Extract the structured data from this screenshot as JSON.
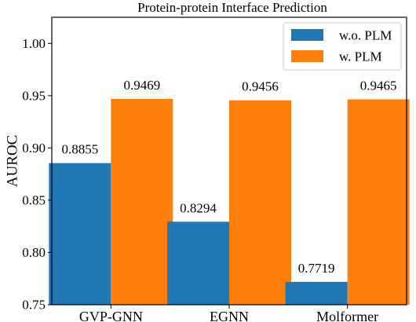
{
  "chart_data": {
    "type": "bar",
    "title": "Protein-protein Interface Prediction",
    "xlabel": "",
    "ylabel": "AUROC",
    "ylim": [
      0.75,
      1.025
    ],
    "yticks": [
      "0.75",
      "0.80",
      "0.85",
      "0.90",
      "0.95",
      "1.00"
    ],
    "grid": false,
    "legend_position": "top-right",
    "categories": [
      "GVP-GNN",
      "EGNN",
      "Molformer"
    ],
    "series": [
      {
        "name": "w.o. PLM",
        "color": "#1f77b4",
        "values": [
          0.8855,
          0.8294,
          0.7719
        ],
        "labels": [
          "0.8855",
          "0.8294",
          "0.7719"
        ]
      },
      {
        "name": "w. PLM",
        "color": "#ff7f0e",
        "values": [
          0.9469,
          0.9456,
          0.9465
        ],
        "labels": [
          "0.9469",
          "0.9456",
          "0.9465"
        ]
      }
    ]
  }
}
